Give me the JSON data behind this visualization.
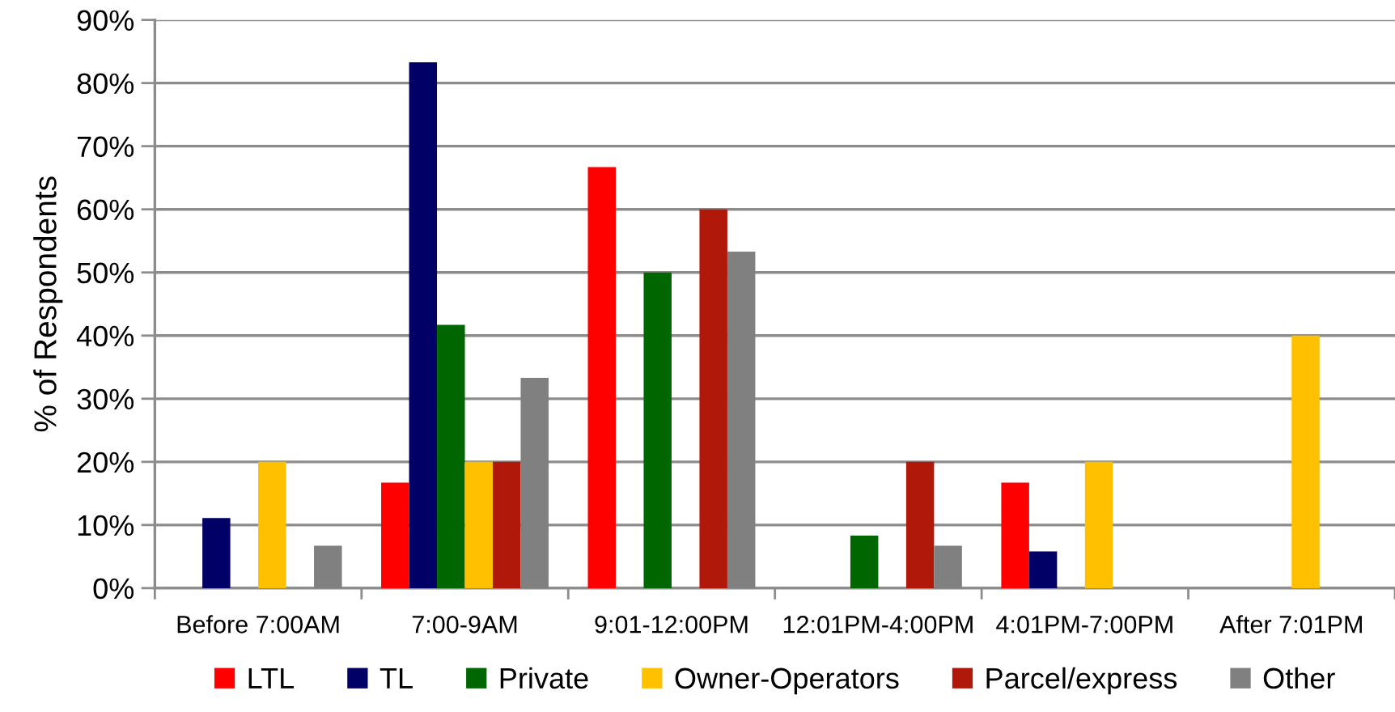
{
  "chart_data": {
    "type": "bar",
    "ylabel": "% of Respondents",
    "categories": [
      "Before 7:00AM",
      "7:00-9AM",
      "9:01-12:00PM",
      "12:01PM-4:00PM",
      "4:01PM-7:00PM",
      "After 7:01PM"
    ],
    "series": [
      {
        "name": "LTL",
        "color": "#ff0000",
        "values": [
          null,
          16.7,
          66.7,
          null,
          16.7,
          null
        ]
      },
      {
        "name": "TL",
        "color": "#000066",
        "values": [
          11.1,
          83.3,
          null,
          null,
          5.8,
          null
        ]
      },
      {
        "name": "Private",
        "color": "#006600",
        "values": [
          null,
          41.7,
          50,
          8.3,
          null,
          null
        ]
      },
      {
        "name": "Owner-Operators",
        "color": "#ffc000",
        "values": [
          20,
          20,
          null,
          null,
          20,
          40
        ]
      },
      {
        "name": "Parcel/express",
        "color": "#b0190a",
        "values": [
          null,
          20,
          60,
          20,
          null,
          null
        ]
      },
      {
        "name": "Other",
        "color": "#808080",
        "values": [
          6.7,
          33.3,
          53.3,
          6.7,
          null,
          null
        ]
      }
    ],
    "ylim": [
      0,
      90
    ],
    "yticks": [
      {
        "value": 0,
        "label": "0%"
      },
      {
        "value": 10,
        "label": "10%"
      },
      {
        "value": 20,
        "label": "20%"
      },
      {
        "value": 30,
        "label": "30%"
      },
      {
        "value": 40,
        "label": "40%"
      },
      {
        "value": 50,
        "label": "50%"
      },
      {
        "value": 60,
        "label": "60%"
      },
      {
        "value": 70,
        "label": "70%"
      },
      {
        "value": 80,
        "label": "80%"
      },
      {
        "value": 90,
        "label": "90%"
      }
    ],
    "grid": "y",
    "legend": "bottom"
  }
}
